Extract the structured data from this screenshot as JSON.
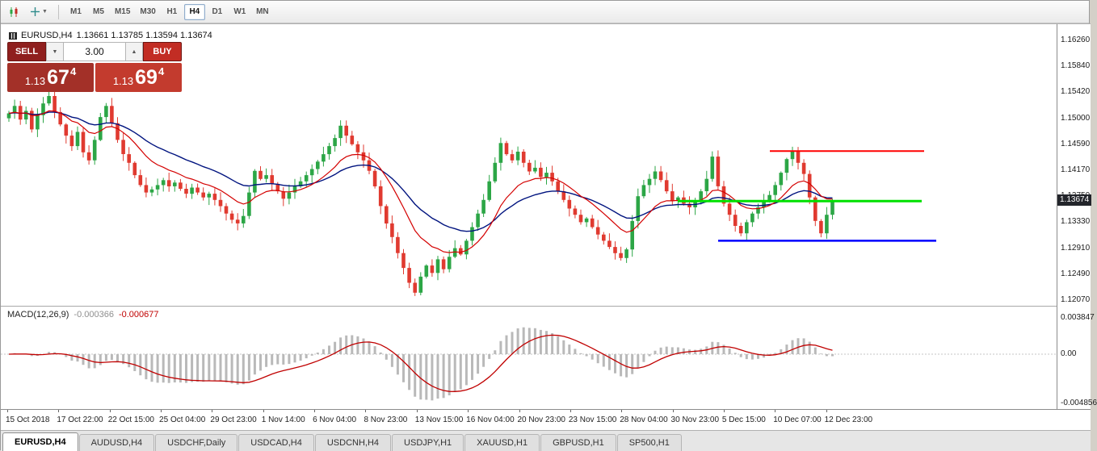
{
  "toolbar": {
    "timeframes": [
      "M1",
      "M5",
      "M15",
      "M30",
      "H1",
      "H4",
      "D1",
      "W1",
      "MN"
    ],
    "active_timeframe": "H4",
    "icons": [
      "candlestick-chart-icon",
      "crosshair-tool-icon"
    ]
  },
  "chart": {
    "symbol": "EURUSD,H4",
    "ohlc": "1.13661 1.13785 1.13594 1.13674",
    "current_price": "1.13674"
  },
  "trade_panel": {
    "sell_label": "SELL",
    "buy_label": "BUY",
    "volume": "3.00",
    "sell_price_main": "1.13",
    "sell_price_big": "67",
    "sell_price_sup": "4",
    "buy_price_main": "1.13",
    "buy_price_big": "69",
    "buy_price_sup": "4"
  },
  "price_axis": [
    "1.16260",
    "1.15840",
    "1.15420",
    "1.15000",
    "1.14590",
    "1.14170",
    "1.13750",
    "1.13330",
    "1.12910",
    "1.12490",
    "1.12070"
  ],
  "time_axis": [
    "15 Oct 2018",
    "17 Oct 22:00",
    "22 Oct 15:00",
    "25 Oct 04:00",
    "29 Oct 23:00",
    "1 Nov 14:00",
    "6 Nov 04:00",
    "8 Nov 23:00",
    "13 Nov 15:00",
    "16 Nov 04:00",
    "20 Nov 23:00",
    "23 Nov 15:00",
    "28 Nov 04:00",
    "30 Nov 23:00",
    "5 Dec 15:00",
    "10 Dec 07:00",
    "12 Dec 23:00"
  ],
  "macd": {
    "name": "MACD(12,26,9)",
    "value_main": "-0.000366",
    "value_signal": "-0.000677",
    "axis_labels": [
      "0.003847",
      "0.00",
      "-0.004856"
    ]
  },
  "tabs": {
    "items": [
      "EURUSD,H4",
      "AUDUSD,H4",
      "USDCHF,Daily",
      "USDCAD,H4",
      "USDCNH,H4",
      "USDJPY,H1",
      "XAUUSD,H1",
      "GBPUSD,H1",
      "SP500,H1"
    ],
    "active_index": 0
  },
  "chart_data": {
    "type": "candlestick",
    "symbol": "EURUSD",
    "timeframe": "H4",
    "ylim": [
      1.1207,
      1.1626
    ],
    "up_color": "#2ca646",
    "down_color": "#e03a30",
    "ma_fast_color": "#d40000",
    "ma_slow_color": "#00137f",
    "macd_hist_color": "#b9b9b9",
    "macd_signal_color": "#c00000",
    "closes": [
      1.1508,
      1.152,
      1.1498,
      1.1512,
      1.1482,
      1.1505,
      1.1524,
      1.1536,
      1.151,
      1.149,
      1.1472,
      1.1455,
      1.1478,
      1.1445,
      1.1432,
      1.1465,
      1.1502,
      1.152,
      1.1492,
      1.1465,
      1.1442,
      1.1428,
      1.1408,
      1.1392,
      1.138,
      1.1385,
      1.1392,
      1.14,
      1.139,
      1.1396,
      1.1386,
      1.1378,
      1.1388,
      1.138,
      1.1372,
      1.1378,
      1.1368,
      1.1358,
      1.1346,
      1.1336,
      1.133,
      1.1342,
      1.138,
      1.1415,
      1.1402,
      1.1408,
      1.1394,
      1.1382,
      1.137,
      1.138,
      1.139,
      1.1398,
      1.1408,
      1.1418,
      1.143,
      1.1442,
      1.1455,
      1.1468,
      1.1488,
      1.1472,
      1.1458,
      1.1445,
      1.1432,
      1.1415,
      1.139,
      1.1358,
      1.133,
      1.1308,
      1.1282,
      1.1258,
      1.1234,
      1.1218,
      1.1244,
      1.1262,
      1.125,
      1.1272,
      1.1256,
      1.1276,
      1.129,
      1.128,
      1.1302,
      1.1324,
      1.1346,
      1.1368,
      1.1398,
      1.1428,
      1.146,
      1.1442,
      1.1432,
      1.1446,
      1.1428,
      1.1414,
      1.142,
      1.1405,
      1.1412,
      1.1398,
      1.1382,
      1.1368,
      1.1354,
      1.1344,
      1.1332,
      1.1338,
      1.1324,
      1.1312,
      1.1302,
      1.1292,
      1.1282,
      1.1274,
      1.1288,
      1.1334,
      1.1374,
      1.1392,
      1.1402,
      1.1414,
      1.14,
      1.1382,
      1.1366,
      1.1372,
      1.1362,
      1.1356,
      1.1366,
      1.1382,
      1.1402,
      1.1438,
      1.139,
      1.1362,
      1.1344,
      1.1326,
      1.1314,
      1.1332,
      1.1346,
      1.1356,
      1.1366,
      1.1376,
      1.1392,
      1.1412,
      1.1434,
      1.1446,
      1.1428,
      1.141,
      1.1372,
      1.1334,
      1.1314,
      1.1344,
      1.1367
    ],
    "lines": [
      {
        "name": "resistance-line",
        "color": "#ff0000",
        "price": 1.1447,
        "x1": 952,
        "x2": 1143,
        "width": 2
      },
      {
        "name": "mid-line",
        "color": "#00e100",
        "price": 1.1366,
        "x1": 838,
        "x2": 1140,
        "width": 3
      },
      {
        "name": "support-line",
        "color": "#0000ff",
        "price": 1.1302,
        "x1": 888,
        "x2": 1158,
        "width": 2.5
      }
    ]
  }
}
